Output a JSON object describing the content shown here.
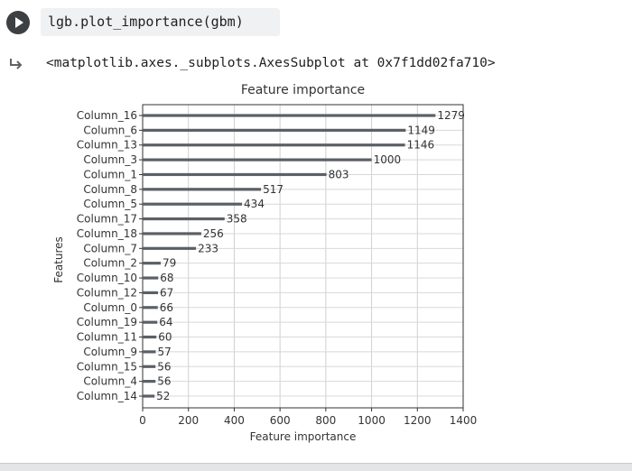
{
  "cell": {
    "code": "lgb.plot_importance(gbm)",
    "output_text": "<matplotlib.axes._subplots.AxesSubplot at 0x7f1dd02fa710>",
    "run_icon": "play-icon",
    "output_icon": "output-redirect-icon"
  },
  "chart_data": {
    "type": "bar",
    "orientation": "horizontal",
    "title": "Feature importance",
    "xlabel": "Feature importance",
    "ylabel": "Features",
    "xlim": [
      0,
      1400
    ],
    "xticks": [
      "0",
      "200",
      "400",
      "600",
      "800",
      "1000",
      "1200",
      "1400"
    ],
    "grid": true,
    "bar_color": "#5b5f66",
    "categories": [
      "Column_16",
      "Column_6",
      "Column_13",
      "Column_3",
      "Column_1",
      "Column_8",
      "Column_5",
      "Column_17",
      "Column_18",
      "Column_7",
      "Column_2",
      "Column_10",
      "Column_12",
      "Column_0",
      "Column_19",
      "Column_11",
      "Column_9",
      "Column_15",
      "Column_4",
      "Column_14"
    ],
    "values": [
      1279,
      1149,
      1146,
      1000,
      803,
      517,
      434,
      358,
      256,
      233,
      79,
      68,
      67,
      66,
      64,
      60,
      57,
      56,
      56,
      52
    ]
  }
}
